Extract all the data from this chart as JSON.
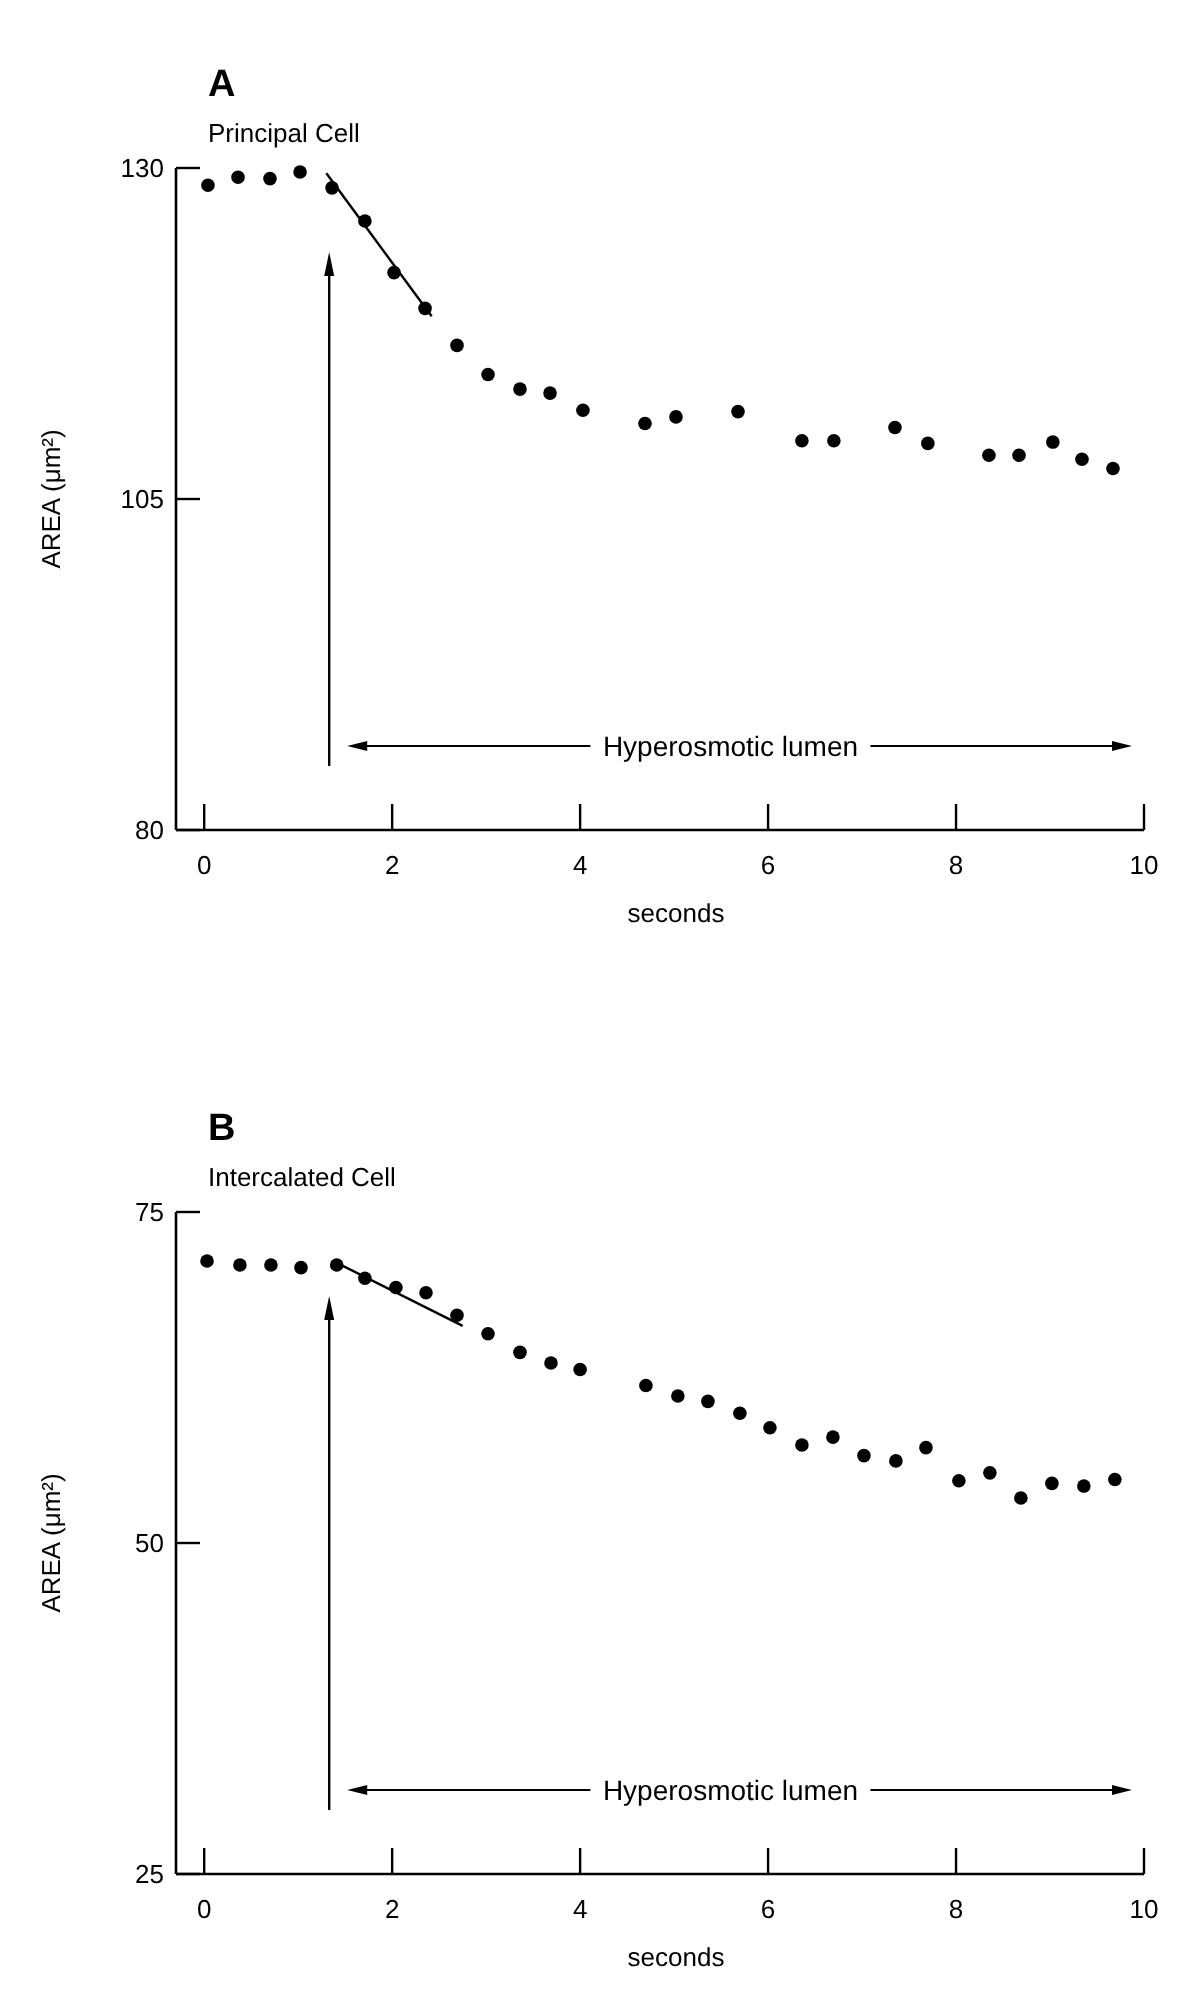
{
  "chart_data": [
    {
      "type": "scatter",
      "title": "A",
      "subtitle": "Principal Cell",
      "xlabel": "seconds",
      "ylabel": "AREA (μm²)",
      "xlim": [
        -0.3,
        10
      ],
      "xticks": [
        0,
        2,
        4,
        6,
        8,
        10
      ],
      "ylim": [
        80,
        130
      ],
      "yticks": [
        80,
        105,
        130
      ],
      "marker": "circle",
      "grid": false,
      "series": [
        {
          "color": "#000000",
          "x": [
            0.04,
            0.36,
            0.7,
            1.02,
            1.36,
            1.71,
            2.02,
            2.35,
            2.69,
            3.02,
            3.36,
            3.68,
            4.03,
            4.69,
            5.02,
            5.68,
            6.36,
            6.7,
            7.35,
            7.7,
            8.35,
            8.67,
            9.03,
            9.34,
            9.67
          ],
          "values": [
            128.7,
            129.3,
            129.2,
            129.7,
            128.5,
            126.0,
            122.1,
            119.4,
            116.6,
            114.4,
            113.3,
            113.0,
            111.7,
            110.7,
            111.2,
            111.6,
            109.4,
            109.4,
            110.4,
            109.2,
            108.3,
            108.3,
            109.3,
            108.0,
            107.3
          ]
        },
        {
          "type": "line",
          "marker": "none",
          "color": "#000000",
          "x": [
            1.3,
            2.42
          ],
          "values": [
            129.6,
            118.8
          ]
        }
      ],
      "ref_lines": [
        {
          "axis": "x",
          "value": 1.33
        }
      ],
      "annotations": [
        "Hyperosmotic lumen"
      ]
    },
    {
      "type": "scatter",
      "title": "B",
      "subtitle": "Intercalated Cell",
      "xlabel": "seconds",
      "ylabel": "AREA (μm²)",
      "xlim": [
        -0.3,
        10
      ],
      "xticks": [
        0,
        2,
        4,
        6,
        8,
        10
      ],
      "ylim": [
        25,
        75
      ],
      "yticks": [
        25,
        50,
        75
      ],
      "marker": "circle",
      "grid": false,
      "series": [
        {
          "color": "#000000",
          "x": [
            0.03,
            0.38,
            0.71,
            1.03,
            1.41,
            1.71,
            2.04,
            2.36,
            2.69,
            3.02,
            3.36,
            3.69,
            4.0,
            4.7,
            5.04,
            5.36,
            5.7,
            6.02,
            6.36,
            6.69,
            7.02,
            7.36,
            7.68,
            8.03,
            8.36,
            8.69,
            9.02,
            9.36,
            9.69
          ],
          "values": [
            71.3,
            71.0,
            71.0,
            70.8,
            71.0,
            70.0,
            69.3,
            68.9,
            67.2,
            65.8,
            64.4,
            63.6,
            63.1,
            61.9,
            61.1,
            60.7,
            59.8,
            58.7,
            57.4,
            58.0,
            56.6,
            56.2,
            57.2,
            54.7,
            55.3,
            53.4,
            54.5,
            54.3,
            54.8
          ]
        },
        {
          "type": "line",
          "marker": "none",
          "color": "#000000",
          "x": [
            1.4,
            2.75
          ],
          "values": [
            71.2,
            66.4
          ]
        }
      ],
      "ref_lines": [
        {
          "axis": "x",
          "value": 1.33
        }
      ],
      "annotations": [
        "Hyperosmotic lumen"
      ]
    }
  ]
}
